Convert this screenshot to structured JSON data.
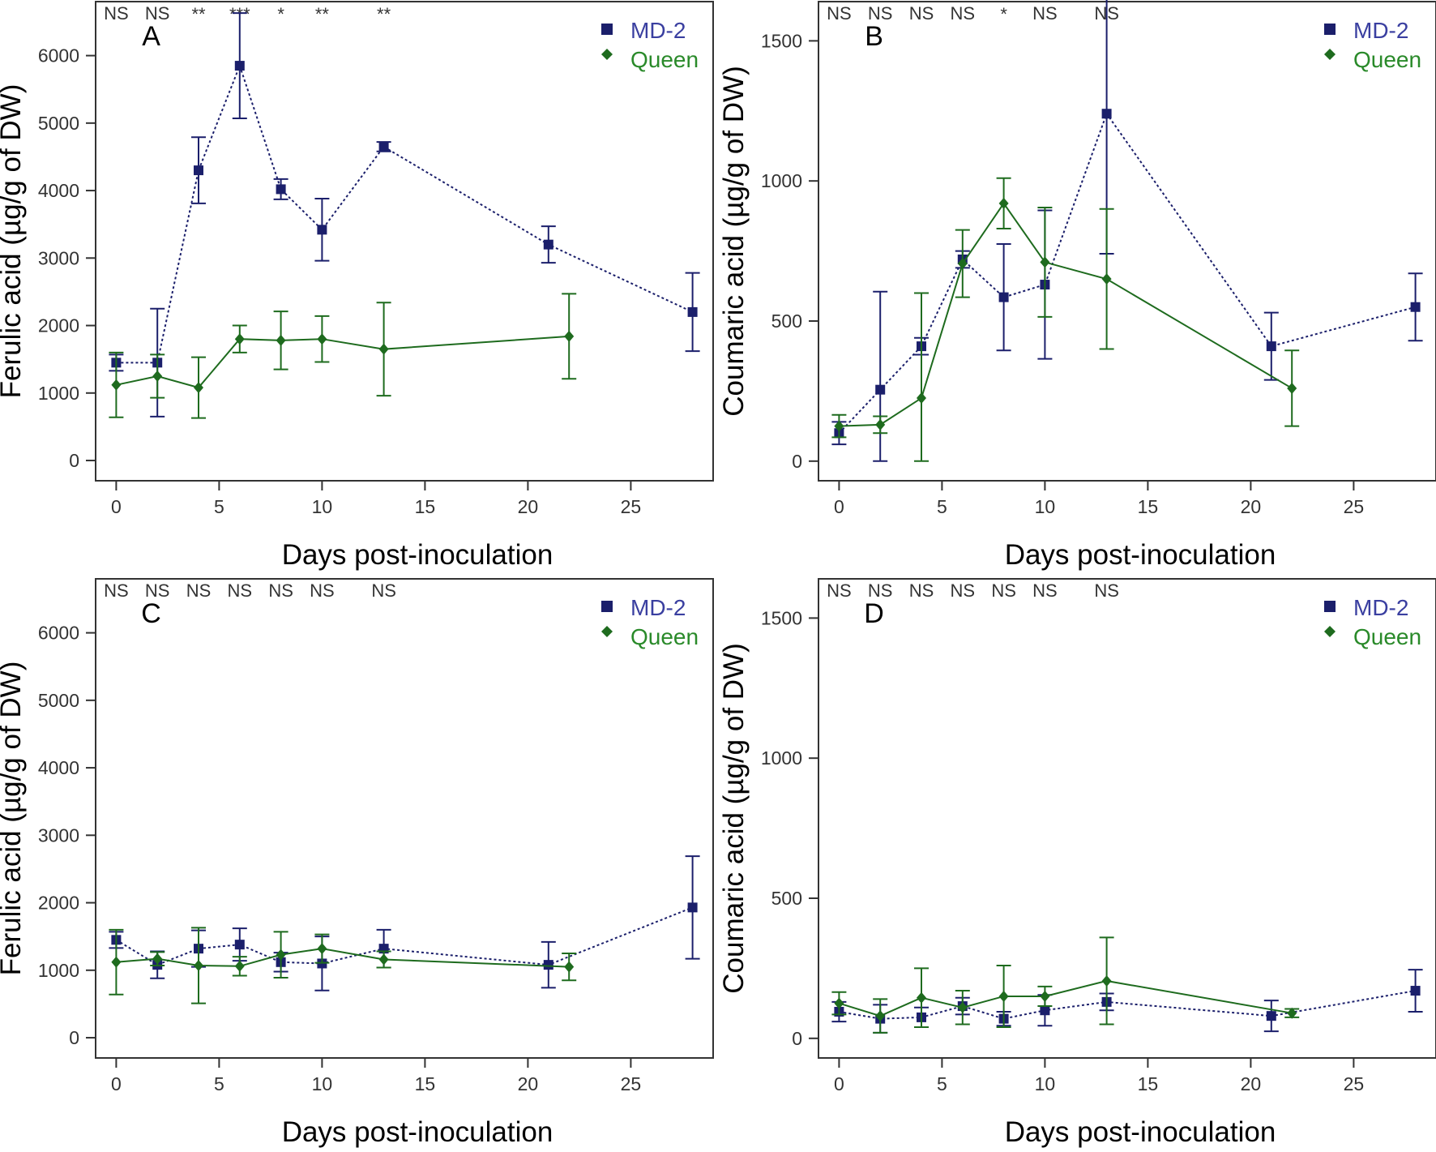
{
  "colors": {
    "md2": "#1b1f6b",
    "queen": "#1e6b1e",
    "frame": "#333333"
  },
  "chart_data": [
    {
      "type": "line",
      "panel": "A",
      "xlabel": "Days post-inoculation",
      "ylabel": "Ferulic acid (µg/g of DW)",
      "xlim": [
        -1,
        29
      ],
      "ylim": [
        -300,
        6800
      ],
      "xticks": [
        0,
        5,
        10,
        15,
        20,
        25
      ],
      "yticks": [
        0,
        1000,
        2000,
        3000,
        4000,
        5000,
        6000
      ],
      "legend": [
        "MD-2",
        "Queen"
      ],
      "significance": [
        {
          "x": 0,
          "label": "NS"
        },
        {
          "x": 2,
          "label": "NS"
        },
        {
          "x": 4,
          "label": "**"
        },
        {
          "x": 6,
          "label": "***"
        },
        {
          "x": 8,
          "label": "*"
        },
        {
          "x": 10,
          "label": "**"
        },
        {
          "x": 13,
          "label": "**"
        }
      ],
      "series": [
        {
          "name": "MD-2",
          "x": [
            0,
            2,
            4,
            6,
            8,
            10,
            13,
            21,
            28
          ],
          "y": [
            1450,
            1450,
            4300,
            5850,
            4020,
            3420,
            4650,
            3200,
            2200
          ],
          "err": [
            120,
            800,
            490,
            780,
            150,
            460,
            70,
            270,
            580
          ]
        },
        {
          "name": "Queen",
          "x": [
            0,
            2,
            4,
            6,
            8,
            10,
            13,
            22
          ],
          "y": [
            1120,
            1250,
            1080,
            1800,
            1780,
            1800,
            1650,
            1840
          ],
          "err": [
            480,
            320,
            450,
            200,
            430,
            340,
            690,
            630
          ]
        }
      ]
    },
    {
      "type": "line",
      "panel": "B",
      "xlabel": "Days post-inoculation",
      "ylabel": "Coumaric acid (µg/g of DW)",
      "xlim": [
        -1,
        29
      ],
      "ylim": [
        -70,
        1640
      ],
      "xticks": [
        0,
        5,
        10,
        15,
        20,
        25
      ],
      "yticks": [
        0,
        500,
        1000,
        1500
      ],
      "legend": [
        "MD-2",
        "Queen"
      ],
      "significance": [
        {
          "x": 0,
          "label": "NS"
        },
        {
          "x": 2,
          "label": "NS"
        },
        {
          "x": 4,
          "label": "NS"
        },
        {
          "x": 6,
          "label": "NS"
        },
        {
          "x": 8,
          "label": "*"
        },
        {
          "x": 10,
          "label": "NS"
        },
        {
          "x": 13,
          "label": "NS"
        }
      ],
      "series": [
        {
          "name": "MD-2",
          "x": [
            0,
            2,
            4,
            6,
            8,
            10,
            13,
            21,
            28
          ],
          "y": [
            100,
            255,
            410,
            720,
            585,
            630,
            1240,
            410,
            550
          ],
          "err": [
            40,
            350,
            30,
            30,
            190,
            265,
            500,
            120,
            120
          ]
        },
        {
          "name": "Queen",
          "x": [
            0,
            2,
            4,
            6,
            8,
            10,
            13,
            22
          ],
          "y": [
            125,
            130,
            225,
            705,
            920,
            710,
            650,
            260
          ],
          "err": [
            40,
            30,
            375,
            120,
            90,
            195,
            250,
            135
          ]
        }
      ]
    },
    {
      "type": "line",
      "panel": "C",
      "xlabel": "Days post-inoculation",
      "ylabel": "Ferulic acid (µg/g of DW)",
      "xlim": [
        -1,
        29
      ],
      "ylim": [
        -300,
        6800
      ],
      "xticks": [
        0,
        5,
        10,
        15,
        20,
        25
      ],
      "yticks": [
        0,
        1000,
        2000,
        3000,
        4000,
        5000,
        6000
      ],
      "legend": [
        "MD-2",
        "Queen"
      ],
      "significance": [
        {
          "x": 0,
          "label": "NS"
        },
        {
          "x": 2,
          "label": "NS"
        },
        {
          "x": 4,
          "label": "NS"
        },
        {
          "x": 6,
          "label": "NS"
        },
        {
          "x": 8,
          "label": "NS"
        },
        {
          "x": 10,
          "label": "NS"
        },
        {
          "x": 13,
          "label": "NS"
        }
      ],
      "series": [
        {
          "name": "MD-2",
          "x": [
            0,
            2,
            4,
            6,
            8,
            10,
            13,
            21,
            28
          ],
          "y": [
            1450,
            1080,
            1320,
            1380,
            1120,
            1100,
            1320,
            1080,
            1930
          ],
          "err": [
            120,
            200,
            270,
            240,
            140,
            400,
            280,
            340,
            760
          ]
        },
        {
          "name": "Queen",
          "x": [
            0,
            2,
            4,
            6,
            8,
            10,
            13,
            22
          ],
          "y": [
            1120,
            1170,
            1070,
            1060,
            1230,
            1320,
            1160,
            1050
          ],
          "err": [
            480,
            100,
            560,
            140,
            340,
            210,
            120,
            200
          ]
        }
      ]
    },
    {
      "type": "line",
      "panel": "D",
      "xlabel": "Days post-inoculation",
      "ylabel": "Coumaric acid (µg/g of DW)",
      "xlim": [
        -1,
        29
      ],
      "ylim": [
        -70,
        1640
      ],
      "xticks": [
        0,
        5,
        10,
        15,
        20,
        25
      ],
      "yticks": [
        0,
        500,
        1000,
        1500
      ],
      "legend": [
        "MD-2",
        "Queen"
      ],
      "significance": [
        {
          "x": 0,
          "label": "NS"
        },
        {
          "x": 2,
          "label": "NS"
        },
        {
          "x": 4,
          "label": "NS"
        },
        {
          "x": 6,
          "label": "NS"
        },
        {
          "x": 8,
          "label": "NS"
        },
        {
          "x": 10,
          "label": "NS"
        },
        {
          "x": 13,
          "label": "NS"
        }
      ],
      "series": [
        {
          "name": "MD-2",
          "x": [
            0,
            2,
            4,
            6,
            8,
            10,
            13,
            21,
            28
          ],
          "y": [
            95,
            70,
            75,
            115,
            70,
            100,
            130,
            80,
            170
          ],
          "err": [
            35,
            50,
            35,
            30,
            25,
            55,
            30,
            55,
            75
          ]
        },
        {
          "name": "Queen",
          "x": [
            0,
            2,
            4,
            6,
            8,
            10,
            13,
            22
          ],
          "y": [
            125,
            80,
            145,
            110,
            150,
            150,
            205,
            90
          ],
          "err": [
            40,
            60,
            105,
            60,
            110,
            35,
            155,
            15
          ]
        }
      ]
    }
  ]
}
